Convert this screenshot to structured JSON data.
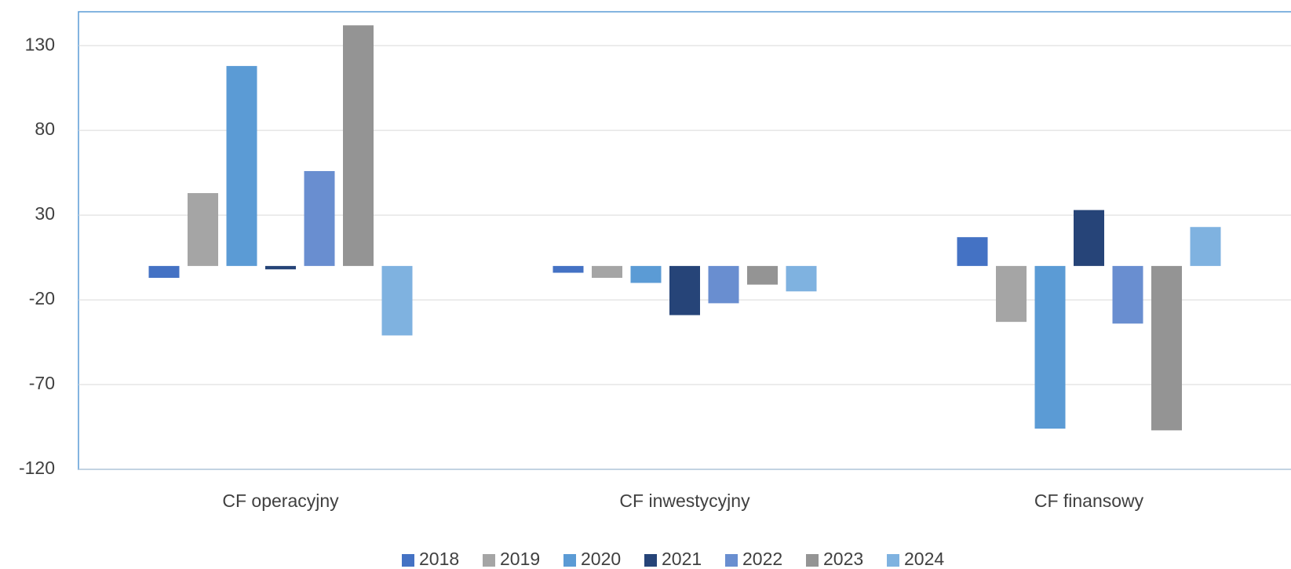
{
  "chart_data": {
    "type": "bar",
    "categories": [
      "CF operacyjny",
      "CF inwestycyjny",
      "CF finansowy"
    ],
    "series": [
      {
        "name": "2018",
        "color": "#4472c4",
        "values": [
          -7,
          -4,
          17
        ]
      },
      {
        "name": "2019",
        "color": "#a5a5a5",
        "values": [
          43,
          -7,
          -33
        ]
      },
      {
        "name": "2020",
        "color": "#5b9bd5",
        "values": [
          118,
          -10,
          -96
        ]
      },
      {
        "name": "2021",
        "color": "#264478",
        "values": [
          -2,
          -29,
          33
        ]
      },
      {
        "name": "2022",
        "color": "#698ed0",
        "values": [
          56,
          -22,
          -34
        ]
      },
      {
        "name": "2023",
        "color": "#949494",
        "values": [
          142,
          -11,
          -97
        ]
      },
      {
        "name": "2024",
        "color": "#7fb2e0",
        "values": [
          -41,
          -15,
          23
        ]
      }
    ],
    "ylim": [
      -120,
      150
    ],
    "yticks": [
      -120,
      -70,
      -20,
      30,
      80,
      130
    ],
    "grid": true,
    "legend": "bottom"
  }
}
